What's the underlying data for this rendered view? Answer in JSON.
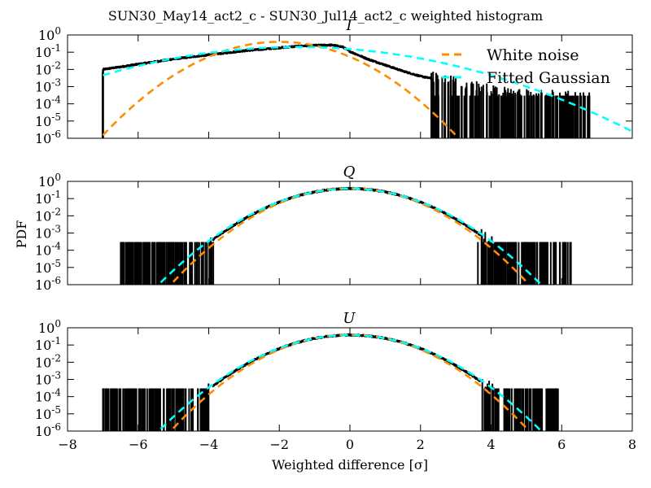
{
  "figure": {
    "suptitle": "SUN30_May14_act2_c - SUN30_Jul14_act2_c weighted histogram",
    "xlabel": "Weighted difference [σ]",
    "ylabel": "PDF"
  },
  "legend": {
    "placement": "upper-right of top panel",
    "items": [
      {
        "label": "White noise",
        "color": "#ff8c00",
        "style": "dashed"
      },
      {
        "label": "Fitted Gaussian",
        "color": "#00ffff",
        "style": "dashed"
      }
    ]
  },
  "chart_data": [
    {
      "type": "line",
      "title": "I",
      "xlim": [
        -8,
        8
      ],
      "ylim_log10": [
        -6,
        0
      ],
      "yscale": "log",
      "xticks": [
        "−8",
        "−6",
        "−4",
        "−2",
        "0",
        "2",
        "4",
        "6",
        "8"
      ],
      "yticks": [
        "10^0",
        "10^-1",
        "10^-2",
        "10^-3",
        "10^-4",
        "10^-5",
        "10^-6"
      ],
      "series": [
        {
          "name": "White noise",
          "color": "#ff8c00",
          "style": "dashed",
          "gaussian": {
            "mu": -2.0,
            "sigma": 1.0
          }
        },
        {
          "name": "Fitted Gaussian",
          "color": "#00ffff",
          "style": "dashed",
          "gaussian": {
            "mu": -1.5,
            "sigma": 2.0
          }
        },
        {
          "color": "#000000",
          "style": "histogram",
          "envelope": [
            [
              -7.0,
              0.006
            ],
            [
              -7.0,
              0.01
            ],
            [
              -6.5,
              0.014
            ],
            [
              -6.0,
              0.02
            ],
            [
              -5.0,
              0.04
            ],
            [
              -4.0,
              0.07
            ],
            [
              -3.0,
              0.12
            ],
            [
              -2.0,
              0.18
            ],
            [
              -1.5,
              0.22
            ],
            [
              -1.0,
              0.25
            ],
            [
              -0.5,
              0.26
            ],
            [
              -0.2,
              0.2
            ],
            [
              0.0,
              0.11
            ],
            [
              0.5,
              0.04
            ],
            [
              1.0,
              0.018
            ],
            [
              1.5,
              0.008
            ],
            [
              2.0,
              0.004
            ],
            [
              2.5,
              0.0025
            ],
            [
              3.0,
              0.0015
            ],
            [
              3.5,
              0.0009
            ],
            [
              4.0,
              0.0006
            ],
            [
              4.5,
              0.0004
            ],
            [
              5.0,
              0.0003
            ],
            [
              6.0,
              0.00025
            ],
            [
              6.8,
              0.00025
            ]
          ],
          "noise_range": [
            2.3,
            6.8
          ],
          "noise_floor": 0.0003
        }
      ]
    },
    {
      "type": "line",
      "title": "Q",
      "xlim": [
        -8,
        8
      ],
      "ylim_log10": [
        -6,
        0
      ],
      "yscale": "log",
      "xticks": [
        "−8",
        "−6",
        "−4",
        "−2",
        "0",
        "2",
        "4",
        "6",
        "8"
      ],
      "yticks": [
        "10^0",
        "10^-1",
        "10^-2",
        "10^-3",
        "10^-4",
        "10^-5",
        "10^-6"
      ],
      "series": [
        {
          "name": "White noise",
          "color": "#ff8c00",
          "style": "dashed",
          "gaussian": {
            "mu": 0.0,
            "sigma": 1.0
          }
        },
        {
          "name": "Fitted Gaussian",
          "color": "#00ffff",
          "style": "dashed",
          "gaussian": {
            "mu": 0.0,
            "sigma": 1.07
          }
        },
        {
          "color": "#000000",
          "style": "histogram",
          "gaussian_like": {
            "mu": 0.0,
            "sigma": 1.05
          },
          "noise_ranges": [
            [
              -6.5,
              -3.8
            ],
            [
              3.6,
              6.3
            ]
          ],
          "noise_floor": 0.0003
        }
      ]
    },
    {
      "type": "line",
      "title": "U",
      "xlim": [
        -8,
        8
      ],
      "ylim_log10": [
        -6,
        0
      ],
      "yscale": "log",
      "xticks": [
        "−8",
        "−6",
        "−4",
        "−2",
        "0",
        "2",
        "4",
        "6",
        "8"
      ],
      "yticks": [
        "10^0",
        "10^-1",
        "10^-2",
        "10^-3",
        "10^-4",
        "10^-5",
        "10^-6"
      ],
      "series": [
        {
          "name": "White noise",
          "color": "#ff8c00",
          "style": "dashed",
          "gaussian": {
            "mu": 0.0,
            "sigma": 1.0
          }
        },
        {
          "name": "Fitted Gaussian",
          "color": "#00ffff",
          "style": "dashed",
          "gaussian": {
            "mu": 0.0,
            "sigma": 1.07
          }
        },
        {
          "color": "#000000",
          "style": "histogram",
          "gaussian_like": {
            "mu": 0.0,
            "sigma": 1.05
          },
          "noise_ranges": [
            [
              -7.0,
              -4.0
            ],
            [
              3.7,
              5.9
            ]
          ],
          "noise_floor": 0.0003
        }
      ]
    }
  ]
}
